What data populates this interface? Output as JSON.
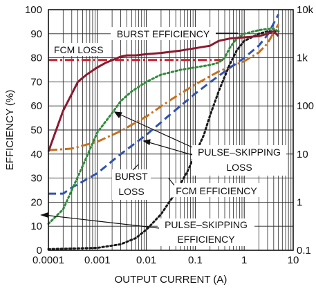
{
  "chart_data": {
    "type": "line",
    "xlabel": "OUTPUT CURRENT (A)",
    "ylabel": "EFFICIENCY (%)",
    "x_scale": "log",
    "xlim": [
      0.0001,
      10
    ],
    "ylim": [
      0,
      100
    ],
    "y2_scale": "log",
    "y2lim": [
      0.1,
      10000
    ],
    "grid": true,
    "x_tick_labels": [
      "0.0001",
      "0.001",
      "0.01",
      "0.1",
      "1",
      "10"
    ],
    "y_tick_labels": [
      "0",
      "10",
      "20",
      "30",
      "40",
      "50",
      "60",
      "70",
      "80",
      "90",
      "100"
    ],
    "y2_tick_labels": [
      "0.1",
      "1",
      "10",
      "100",
      "1k",
      "10k"
    ],
    "series": [
      {
        "name": "BURST EFFICIENCY",
        "color": "#8b1a2e",
        "dash": "solid",
        "axis": "left",
        "points": [
          [
            0.0001,
            41
          ],
          [
            0.00015,
            51
          ],
          [
            0.0002,
            58
          ],
          [
            0.0003,
            65
          ],
          [
            0.0004,
            70
          ],
          [
            0.0006,
            73
          ],
          [
            0.001,
            76
          ],
          [
            0.0015,
            78
          ],
          [
            0.002,
            79
          ],
          [
            0.003,
            80.5
          ],
          [
            0.004,
            81
          ],
          [
            0.006,
            81
          ],
          [
            0.01,
            81.5
          ],
          [
            0.02,
            82
          ],
          [
            0.05,
            83
          ],
          [
            0.1,
            84
          ],
          [
            0.2,
            85
          ],
          [
            0.3,
            87
          ],
          [
            0.5,
            88
          ],
          [
            1,
            88.5
          ],
          [
            2,
            89
          ],
          [
            3,
            90
          ],
          [
            4,
            91
          ],
          [
            5,
            89
          ]
        ]
      },
      {
        "name": "PULSE-SKIPPING EFFICIENCY",
        "color": "#2e8b3a",
        "dash": "dotted",
        "axis": "left",
        "points": [
          [
            0.0001,
            11
          ],
          [
            0.0002,
            17
          ],
          [
            0.0003,
            25
          ],
          [
            0.0005,
            35
          ],
          [
            0.001,
            49
          ],
          [
            0.002,
            57
          ],
          [
            0.003,
            62
          ],
          [
            0.005,
            66
          ],
          [
            0.01,
            70
          ],
          [
            0.02,
            73
          ],
          [
            0.05,
            75
          ],
          [
            0.1,
            76
          ],
          [
            0.2,
            77
          ],
          [
            0.3,
            78
          ],
          [
            0.4,
            80
          ],
          [
            0.5,
            84
          ],
          [
            0.7,
            88
          ],
          [
            1,
            90
          ],
          [
            2,
            91.5
          ],
          [
            3,
            92
          ],
          [
            4,
            92
          ],
          [
            5,
            91
          ]
        ]
      },
      {
        "name": "FCM EFFICIENCY",
        "color": "#1a1a1a",
        "dash": "dotted",
        "axis": "left",
        "points": [
          [
            0.0001,
            0.5
          ],
          [
            0.001,
            1
          ],
          [
            0.003,
            2.5
          ],
          [
            0.006,
            5
          ],
          [
            0.01,
            8.5
          ],
          [
            0.02,
            15
          ],
          [
            0.04,
            24
          ],
          [
            0.07,
            33
          ],
          [
            0.1,
            40
          ],
          [
            0.15,
            48
          ],
          [
            0.2,
            56
          ],
          [
            0.3,
            66
          ],
          [
            0.5,
            77
          ],
          [
            0.7,
            83
          ],
          [
            1,
            87
          ],
          [
            2,
            90
          ],
          [
            3,
            91
          ],
          [
            5,
            91
          ]
        ]
      },
      {
        "name": "FCM LOSS",
        "color": "#cc1f2e",
        "dash": "dashdot",
        "axis": "right",
        "points": [
          [
            0.0001,
            900
          ],
          [
            0.4,
            900
          ]
        ]
      },
      {
        "name": "PULSE-SKIPPING LOSS",
        "color": "#c8701e",
        "dash": "dashdot",
        "axis": "right",
        "points": [
          [
            0.0001,
            12
          ],
          [
            0.0003,
            13
          ],
          [
            0.001,
            18
          ],
          [
            0.003,
            30
          ],
          [
            0.01,
            60
          ],
          [
            0.03,
            130
          ],
          [
            0.1,
            280
          ],
          [
            0.3,
            520
          ],
          [
            1,
            850
          ],
          [
            2,
            1300
          ],
          [
            3,
            2000
          ],
          [
            5,
            5000
          ]
        ]
      },
      {
        "name": "BURST LOSS",
        "color": "#2f52b4",
        "dash": "dashed",
        "axis": "right",
        "points": [
          [
            0.0001,
            1.5
          ],
          [
            0.0002,
            1.5
          ],
          [
            0.0003,
            2
          ],
          [
            0.001,
            4
          ],
          [
            0.003,
            10
          ],
          [
            0.01,
            25
          ],
          [
            0.03,
            65
          ],
          [
            0.1,
            180
          ],
          [
            0.2,
            310
          ],
          [
            0.3,
            420
          ],
          [
            0.5,
            610
          ],
          [
            1,
            1000
          ],
          [
            2,
            1800
          ],
          [
            3,
            3000
          ],
          [
            5,
            8000
          ]
        ]
      }
    ],
    "annotations": [
      {
        "text": "BURST EFFICIENCY"
      },
      {
        "text": "FCM LOSS"
      },
      {
        "text": "PULSE–SKIPPING",
        "text2": "LOSS"
      },
      {
        "text": "BURST",
        "text2": "LOSS"
      },
      {
        "text": "FCM EFFICIENCY"
      },
      {
        "text": "PULSE–SKIPPING",
        "text2": "EFFICIENCY"
      }
    ]
  }
}
